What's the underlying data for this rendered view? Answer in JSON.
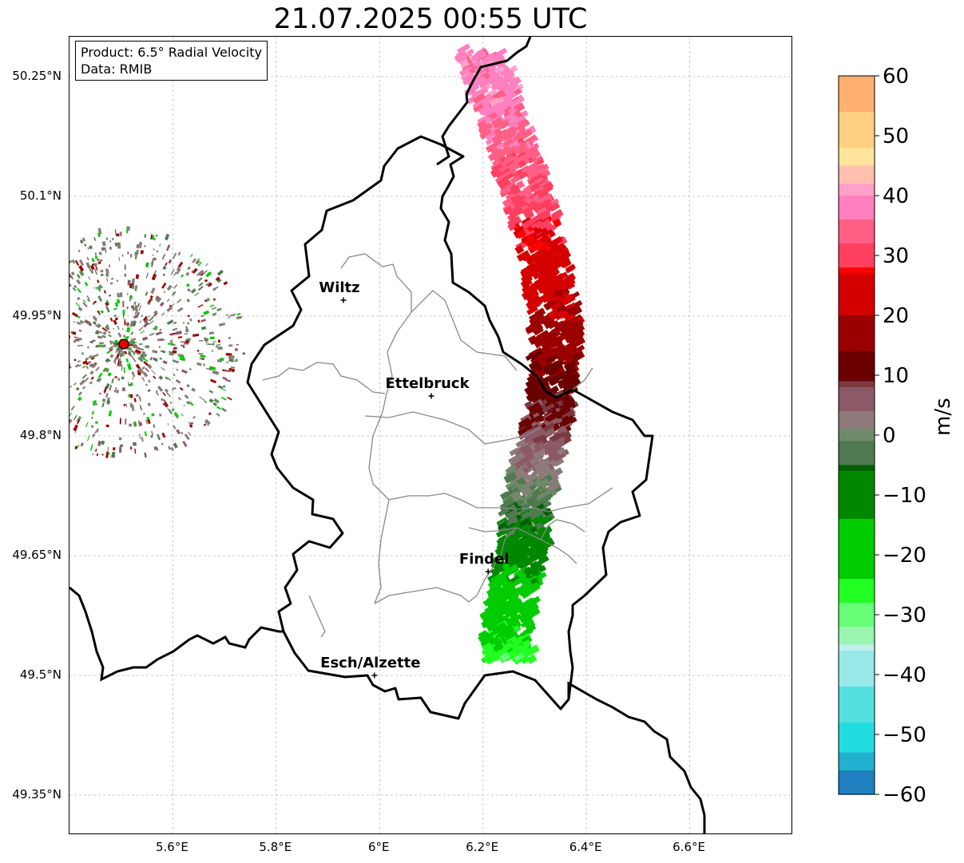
{
  "title": "21.07.2025 00:55 UTC",
  "info_box": {
    "product": "Product: 6.5° Radial Velocity",
    "data": "Data: RMIB"
  },
  "map": {
    "lon_range": [
      5.4,
      6.8
    ],
    "lat_range": [
      49.3,
      50.3
    ],
    "grid": true,
    "lat_ticks": [
      {
        "value": 50.25,
        "label": "50.25°N"
      },
      {
        "value": 50.1,
        "label": "50.1°N"
      },
      {
        "value": 49.95,
        "label": "49.95°N"
      },
      {
        "value": 49.8,
        "label": "49.8°N"
      },
      {
        "value": 49.65,
        "label": "49.65°N"
      },
      {
        "value": 49.5,
        "label": "49.5°N"
      },
      {
        "value": 49.35,
        "label": "49.35°N"
      }
    ],
    "lon_ticks": [
      {
        "value": 5.6,
        "label": "5.6°E"
      },
      {
        "value": 5.8,
        "label": "5.8°E"
      },
      {
        "value": 6.0,
        "label": "6°E"
      },
      {
        "value": 6.2,
        "label": "6.2°E"
      },
      {
        "value": 6.4,
        "label": "6.4°E"
      },
      {
        "value": 6.6,
        "label": "6.6°E"
      }
    ],
    "cities": [
      {
        "name": "Wiltz",
        "lon": 5.93,
        "lat": 49.97
      },
      {
        "name": "Ettelbruck",
        "lon": 6.1,
        "lat": 49.85
      },
      {
        "name": "Findel",
        "lon": 6.21,
        "lat": 49.63
      },
      {
        "name": "Esch/Alzette",
        "lon": 5.99,
        "lat": 49.5
      }
    ],
    "radar_site": {
      "lon": 5.505,
      "lat": 49.915,
      "color": "#e00000"
    },
    "velocity_band": [
      {
        "lon": 6.185,
        "lat": 50.28,
        "v": 38
      },
      {
        "lon": 6.215,
        "lat": 50.22,
        "v": 38
      },
      {
        "lon": 6.245,
        "lat": 50.16,
        "v": 34
      },
      {
        "lon": 6.275,
        "lat": 50.1,
        "v": 32
      },
      {
        "lon": 6.305,
        "lat": 50.04,
        "v": 26
      },
      {
        "lon": 6.32,
        "lat": 49.98,
        "v": 22
      },
      {
        "lon": 6.33,
        "lat": 49.92,
        "v": 17
      },
      {
        "lon": 6.325,
        "lat": 49.86,
        "v": 12
      },
      {
        "lon": 6.31,
        "lat": 49.81,
        "v": 8
      },
      {
        "lon": 6.29,
        "lat": 49.76,
        "v": 3
      },
      {
        "lon": 6.275,
        "lat": 49.71,
        "v": -3
      },
      {
        "lon": 6.265,
        "lat": 49.66,
        "v": -9
      },
      {
        "lon": 6.25,
        "lat": 49.61,
        "v": -16
      },
      {
        "lon": 6.235,
        "lat": 49.56,
        "v": -22
      },
      {
        "lon": 6.24,
        "lat": 49.52,
        "v": -26
      }
    ]
  },
  "colorbar": {
    "label": "m/s",
    "min": -60,
    "max": 60,
    "ticks": [
      {
        "value": 60,
        "label": "60"
      },
      {
        "value": 50,
        "label": "50"
      },
      {
        "value": 40,
        "label": "40"
      },
      {
        "value": 30,
        "label": "30"
      },
      {
        "value": 20,
        "label": "20"
      },
      {
        "value": 10,
        "label": "10"
      },
      {
        "value": 0,
        "label": "0"
      },
      {
        "value": -10,
        "label": "−10"
      },
      {
        "value": -20,
        "label": "−20"
      },
      {
        "value": -30,
        "label": "−30"
      },
      {
        "value": -40,
        "label": "−40"
      },
      {
        "value": -50,
        "label": "−50"
      },
      {
        "value": -60,
        "label": "−60"
      }
    ],
    "color_stops": [
      {
        "v": 60,
        "color": "#ff9955"
      },
      {
        "v": 54,
        "color": "#ffb070"
      },
      {
        "v": 48,
        "color": "#ffd080"
      },
      {
        "v": 45,
        "color": "#ffe49a"
      },
      {
        "v": 42,
        "color": "#ffc0b0"
      },
      {
        "v": 40,
        "color": "#ffa0c8"
      },
      {
        "v": 36,
        "color": "#ff80c0"
      },
      {
        "v": 32,
        "color": "#ff5f85"
      },
      {
        "v": 28,
        "color": "#ff3f60"
      },
      {
        "v": 27,
        "color": "#ff0000"
      },
      {
        "v": 20,
        "color": "#d40000"
      },
      {
        "v": 14,
        "color": "#9b0000"
      },
      {
        "v": 9,
        "color": "#6a0000"
      },
      {
        "v": 8,
        "color": "#7a3a40"
      },
      {
        "v": 4,
        "color": "#8c5a66"
      },
      {
        "v": 1,
        "color": "#8e7a7a"
      },
      {
        "v": -1,
        "color": "#6e8a6a"
      },
      {
        "v": -5,
        "color": "#4f7a4f"
      },
      {
        "v": -6,
        "color": "#006000"
      },
      {
        "v": -14,
        "color": "#008800"
      },
      {
        "v": -24,
        "color": "#00cc00"
      },
      {
        "v": -28,
        "color": "#22ff22"
      },
      {
        "v": -32,
        "color": "#66ff77"
      },
      {
        "v": -35,
        "color": "#99f5b0"
      },
      {
        "v": -36,
        "color": "#bff0ef"
      },
      {
        "v": -42,
        "color": "#99e8e8"
      },
      {
        "v": -48,
        "color": "#55e0e0"
      },
      {
        "v": -53,
        "color": "#22dde0"
      },
      {
        "v": -56,
        "color": "#22b0d0"
      },
      {
        "v": -60,
        "color": "#2080c0"
      }
    ]
  }
}
